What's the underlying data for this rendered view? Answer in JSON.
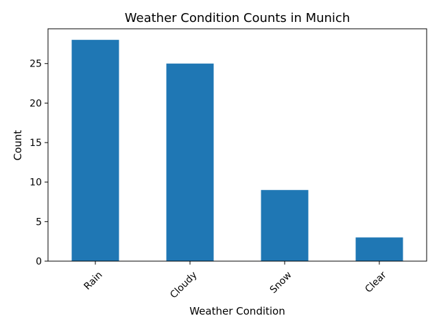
{
  "chart_data": {
    "type": "bar",
    "title": "Weather Condition Counts in Munich",
    "xlabel": "Weather Condition",
    "ylabel": "Count",
    "categories": [
      "Rain",
      "Cloudy",
      "Snow",
      "Clear"
    ],
    "values": [
      28,
      25,
      9,
      3
    ],
    "ylim": [
      0,
      29.4
    ],
    "yticks": [
      0,
      5,
      10,
      15,
      20,
      25
    ],
    "xtick_rotation_deg": 45,
    "bar_color": "#1f77b4",
    "grid": false,
    "legend": "none"
  }
}
